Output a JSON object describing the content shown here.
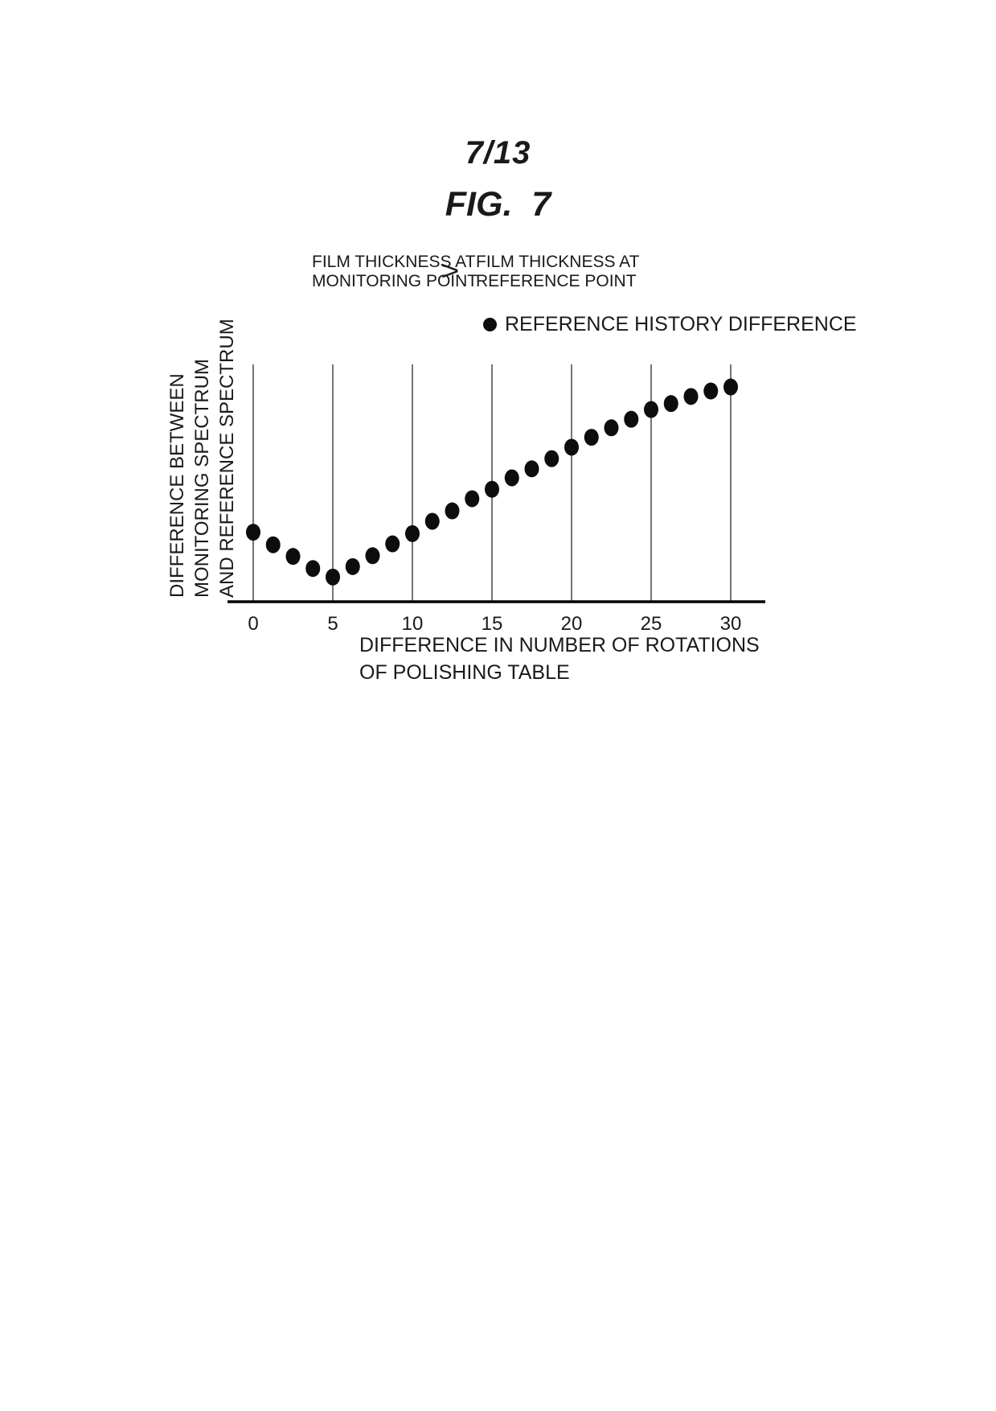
{
  "page": {
    "sheet_number": "7/13",
    "figure_title": "FIG.  7"
  },
  "condition": {
    "left_line1": "FILM THICKNESS AT",
    "left_line2": "MONITORING POINT",
    "operator": ">",
    "right_line1": "FILM THICKNESS AT",
    "right_line2": "REFERENCE POINT"
  },
  "legend": {
    "label": "REFERENCE HISTORY DIFFERENCE"
  },
  "axes": {
    "x_title_line1": "DIFFERENCE IN NUMBER OF ROTATIONS",
    "x_title_line2": "OF POLISHING TABLE",
    "y_title_line1": "DIFFERENCE BETWEEN",
    "y_title_line2": "MONITORING SPECTRUM",
    "y_title_line3": "AND REFERENCE SPECTRUM"
  },
  "colors": {
    "ink": "#1a1a1a",
    "dot": "#0d0d0d",
    "gridline": "#3a3a3a",
    "axis": "#000000"
  },
  "chart_data": {
    "type": "scatter",
    "title": "FIG. 7",
    "xlabel": "DIFFERENCE IN NUMBER OF ROTATIONS OF POLISHING TABLE",
    "ylabel": "DIFFERENCE BETWEEN MONITORING SPECTRUM AND REFERENCE SPECTRUM",
    "legend_entries": [
      "REFERENCE HISTORY DIFFERENCE"
    ],
    "annotations": [
      "FILM THICKNESS AT MONITORING POINT > FILM THICKNESS AT REFERENCE POINT"
    ],
    "x_ticks": [
      0,
      5,
      10,
      15,
      20,
      25,
      30
    ],
    "xlim": [
      0,
      32.2
    ],
    "ylim": [
      0,
      1
    ],
    "y_ticks": [],
    "y_units": "arbitrary (unlabeled spectrum difference)",
    "grid": "vertical gridlines at each x tick, no horizontal gridlines",
    "legend_position": "top-right above plot",
    "shape_note": "V-shaped: decreases to minimum at x=5, then rises and flattens toward x=30",
    "series": [
      {
        "name": "REFERENCE HISTORY DIFFERENCE",
        "marker": "filled-circle",
        "points": [
          [
            0,
            0.293
          ],
          [
            1.25,
            0.24
          ],
          [
            2.5,
            0.191
          ],
          [
            3.75,
            0.14
          ],
          [
            5,
            0.104
          ],
          [
            6.25,
            0.148
          ],
          [
            7.5,
            0.194
          ],
          [
            8.75,
            0.244
          ],
          [
            10,
            0.287
          ],
          [
            11.25,
            0.339
          ],
          [
            12.5,
            0.383
          ],
          [
            13.75,
            0.434
          ],
          [
            15,
            0.474
          ],
          [
            16.25,
            0.522
          ],
          [
            17.5,
            0.56
          ],
          [
            18.75,
            0.603
          ],
          [
            20,
            0.651
          ],
          [
            21.25,
            0.693
          ],
          [
            22.5,
            0.733
          ],
          [
            23.75,
            0.769
          ],
          [
            25,
            0.81
          ],
          [
            26.25,
            0.835
          ],
          [
            27.5,
            0.865
          ],
          [
            28.75,
            0.888
          ],
          [
            30,
            0.905
          ]
        ]
      }
    ]
  }
}
